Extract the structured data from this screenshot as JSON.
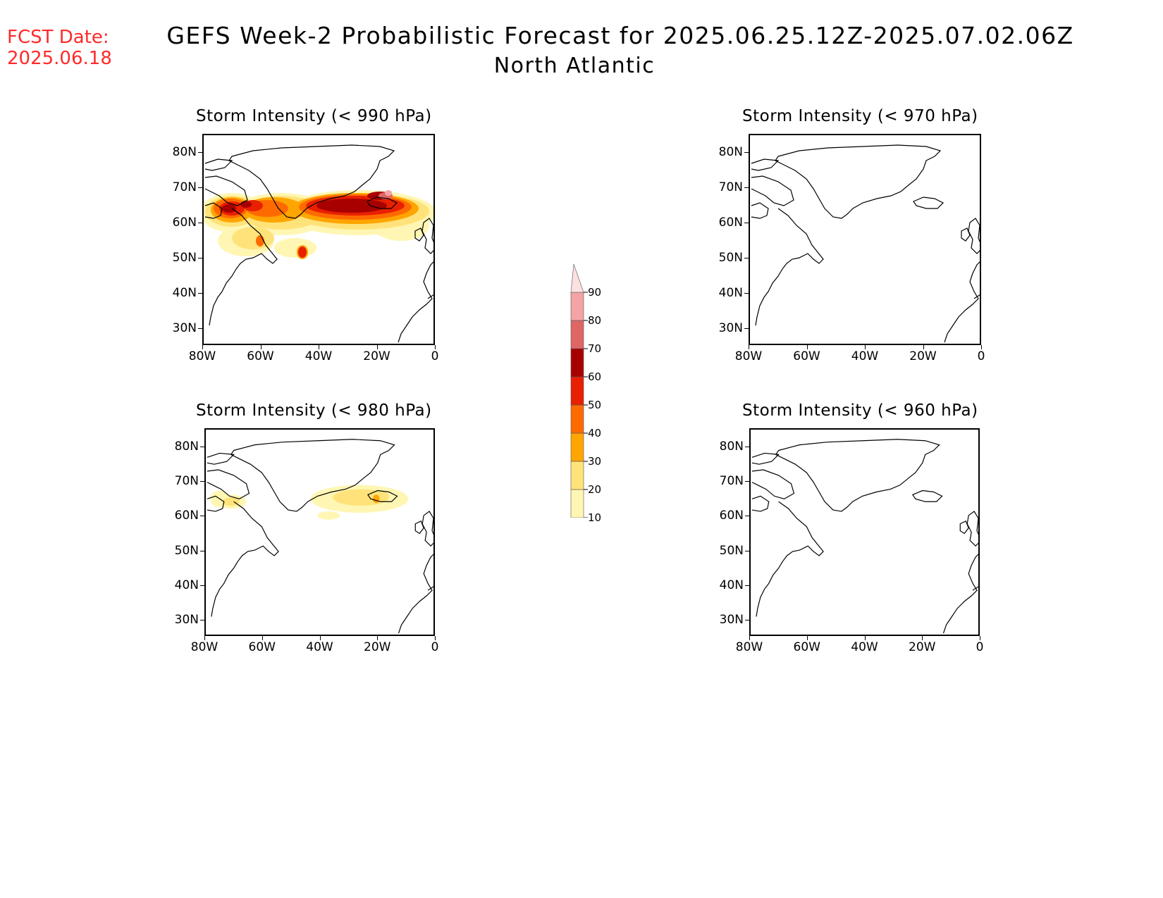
{
  "fcst_date": {
    "label": "FCST Date:",
    "value": "2025.06.18"
  },
  "title": {
    "line1": "GEFS Week-2 Probabilistic Forecast for 2025.06.25.12Z-2025.07.02.06Z",
    "line2": "North Atlantic"
  },
  "axes": {
    "lat_labels": [
      "80N",
      "70N",
      "60N",
      "50N",
      "40N",
      "30N"
    ],
    "lon_labels": [
      "80W",
      "60W",
      "40W",
      "20W",
      "0"
    ]
  },
  "panels": [
    {
      "id": "p990",
      "title": "Storm Intensity (< 990 hPa)",
      "has_data": true
    },
    {
      "id": "p970",
      "title": "Storm Intensity (< 970 hPa)",
      "has_data": false
    },
    {
      "id": "p980",
      "title": "Storm Intensity (< 980 hPa)",
      "has_data": true
    },
    {
      "id": "p960",
      "title": "Storm Intensity (< 960 hPa)",
      "has_data": false
    }
  ],
  "colorbar": {
    "levels": [
      "10",
      "20",
      "30",
      "40",
      "50",
      "60",
      "70",
      "80",
      "90"
    ],
    "colors": [
      "#fff6b3",
      "#ffe37a",
      "#ffa500",
      "#ff6a00",
      "#e82000",
      "#a80000",
      "#e06666",
      "#f4a4a4",
      "#fde0e0"
    ]
  }
}
